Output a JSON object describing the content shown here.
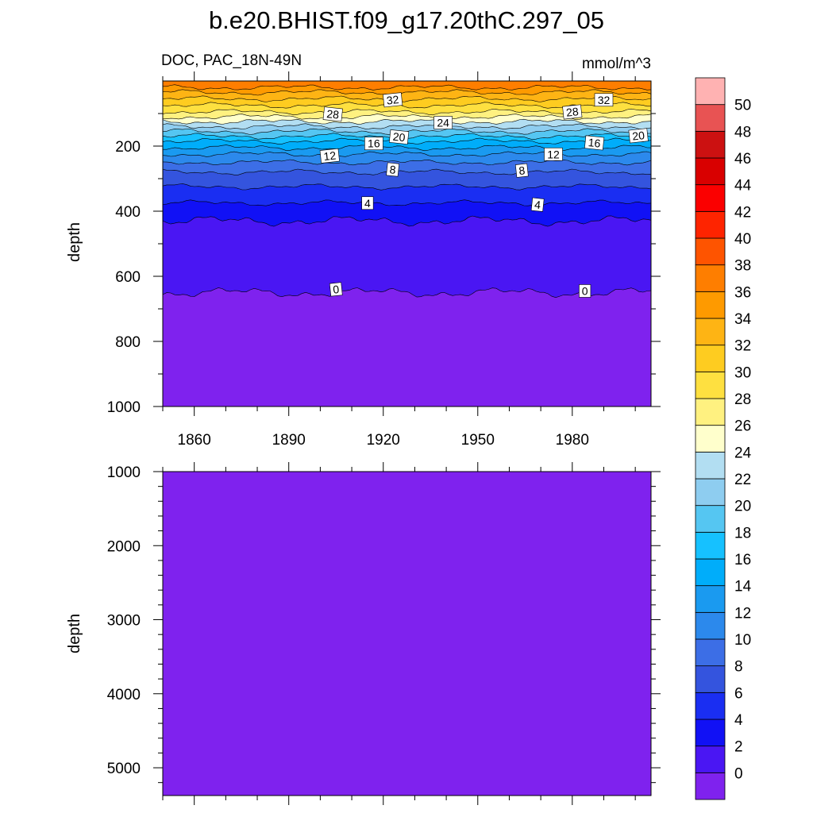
{
  "chart_data": {
    "type": "heatmap",
    "title": "b.e20.BHIST.f09_g17.20thC.297_05",
    "subtitle_left": "DOC, PAC_18N-49N",
    "subtitle_right": "mmol/m^3",
    "colorbar": {
      "levels": [
        "0",
        "2",
        "4",
        "6",
        "8",
        "10",
        "12",
        "14",
        "16",
        "18",
        "20",
        "22",
        "24",
        "26",
        "28",
        "30",
        "32",
        "34",
        "36",
        "38",
        "40",
        "42",
        "44",
        "46",
        "48",
        "50"
      ],
      "colors": [
        "#7f22ee",
        "#4a16f3",
        "#1111f5",
        "#1a2ef2",
        "#3454de",
        "#3c6ee6",
        "#2c89ec",
        "#1a9af0",
        "#00adfa",
        "#16c1ff",
        "#55c6f2",
        "#8ecdf0",
        "#b2def2",
        "#ffffcc",
        "#fff180",
        "#fee040",
        "#fecc20",
        "#feb414",
        "#fe9a00",
        "#fe7e00",
        "#fe5400",
        "#fe2400",
        "#fb0000",
        "#d90000",
        "#cc1111",
        "#e85353",
        "#ffb2b2"
      ]
    },
    "panels": [
      {
        "name": "upper",
        "ylabel": "depth",
        "ylim": [
          0,
          1000
        ],
        "yticks": [
          "200",
          "400",
          "600",
          "800",
          "1000"
        ],
        "ytick_values": [
          200,
          400,
          600,
          800,
          1000
        ],
        "xlim": [
          1850,
          2005
        ],
        "xticks": [
          "1860",
          "1890",
          "1920",
          "1950",
          "1980"
        ],
        "xtick_values": [
          1860,
          1890,
          1920,
          1950,
          1980
        ],
        "layers": [
          {
            "level": 36,
            "depth": 20
          },
          {
            "level": 34,
            "depth": 35
          },
          {
            "level": 32,
            "depth": 55
          },
          {
            "level": 30,
            "depth": 75
          },
          {
            "level": 28,
            "depth": 95
          },
          {
            "level": 26,
            "depth": 110
          },
          {
            "level": 24,
            "depth": 125
          },
          {
            "level": 22,
            "depth": 140
          },
          {
            "level": 20,
            "depth": 155
          },
          {
            "level": 18,
            "depth": 170
          },
          {
            "level": 16,
            "depth": 185
          },
          {
            "level": 14,
            "depth": 205
          },
          {
            "level": 12,
            "depth": 225
          },
          {
            "level": 10,
            "depth": 250
          },
          {
            "level": 8,
            "depth": 280
          },
          {
            "level": 6,
            "depth": 325
          },
          {
            "level": 4,
            "depth": 375
          },
          {
            "level": 2,
            "depth": 430
          },
          {
            "level": 0,
            "depth": 650
          }
        ],
        "contour_labels": [
          {
            "text": "32",
            "year": 1923,
            "depth": 58
          },
          {
            "text": "32",
            "year": 1990,
            "depth": 58
          },
          {
            "text": "28",
            "year": 1904,
            "depth": 102
          },
          {
            "text": "28",
            "year": 1980,
            "depth": 95
          },
          {
            "text": "24",
            "year": 1939,
            "depth": 128
          },
          {
            "text": "20",
            "year": 1925,
            "depth": 172
          },
          {
            "text": "20",
            "year": 2001,
            "depth": 168
          },
          {
            "text": "16",
            "year": 1917,
            "depth": 192
          },
          {
            "text": "16",
            "year": 1987,
            "depth": 190
          },
          {
            "text": "12",
            "year": 1903,
            "depth": 230
          },
          {
            "text": "12",
            "year": 1974,
            "depth": 225
          },
          {
            "text": "8",
            "year": 1923,
            "depth": 272
          },
          {
            "text": "8",
            "year": 1964,
            "depth": 275
          },
          {
            "text": "4",
            "year": 1915,
            "depth": 375
          },
          {
            "text": "4",
            "year": 1969,
            "depth": 380
          },
          {
            "text": "0",
            "year": 1905,
            "depth": 640
          },
          {
            "text": "0",
            "year": 1984,
            "depth": 645
          }
        ]
      },
      {
        "name": "lower",
        "ylabel": "depth",
        "ylim": [
          1000,
          5375
        ],
        "yticks": [
          "1000",
          "2000",
          "3000",
          "4000",
          "5000"
        ],
        "ytick_values": [
          1000,
          2000,
          3000,
          4000,
          5000
        ],
        "xlim": [
          1850,
          2005
        ],
        "fill_level": 0
      }
    ]
  }
}
